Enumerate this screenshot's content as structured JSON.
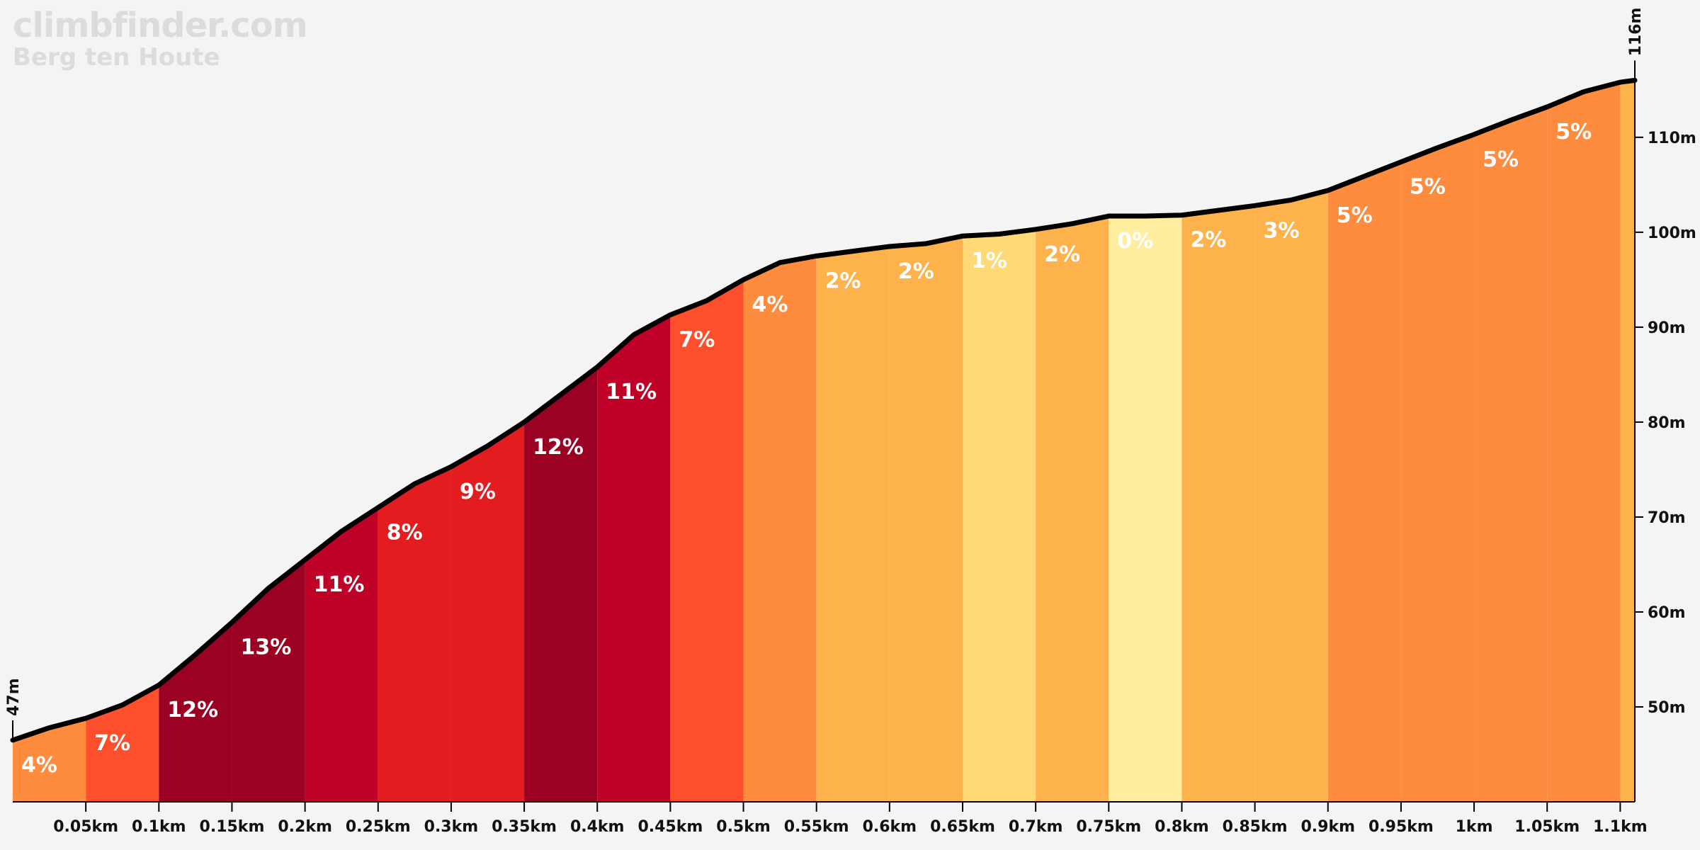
{
  "brand": {
    "site": "climbfinder.com",
    "climb": "Berg ten Houte"
  },
  "chart_data": {
    "type": "area",
    "xlabel": "",
    "ylabel": "",
    "xlim": [
      0,
      1.11
    ],
    "ylim": [
      40,
      117
    ],
    "start_label": "47m",
    "end_label": "116m",
    "x_ticks": [
      "0.05km",
      "0.1km",
      "0.15km",
      "0.2km",
      "0.25km",
      "0.3km",
      "0.35km",
      "0.4km",
      "0.45km",
      "0.5km",
      "0.55km",
      "0.6km",
      "0.65km",
      "0.7km",
      "0.75km",
      "0.8km",
      "0.85km",
      "0.9km",
      "0.95km",
      "1km",
      "1.05km",
      "1.1km"
    ],
    "x_tick_values": [
      0.05,
      0.1,
      0.15,
      0.2,
      0.25,
      0.3,
      0.35,
      0.4,
      0.45,
      0.5,
      0.55,
      0.6,
      0.65,
      0.7,
      0.75,
      0.8,
      0.85,
      0.9,
      0.95,
      1.0,
      1.05,
      1.1
    ],
    "y_ticks": [
      "50m",
      "60m",
      "70m",
      "80m",
      "90m",
      "100m",
      "110m"
    ],
    "y_tick_values": [
      50,
      60,
      70,
      80,
      90,
      100,
      110
    ],
    "profile": [
      [
        0.0,
        46.5
      ],
      [
        0.025,
        47.8
      ],
      [
        0.05,
        48.8
      ],
      [
        0.075,
        50.2
      ],
      [
        0.1,
        52.3
      ],
      [
        0.125,
        55.5
      ],
      [
        0.15,
        58.9
      ],
      [
        0.175,
        62.5
      ],
      [
        0.2,
        65.5
      ],
      [
        0.225,
        68.5
      ],
      [
        0.25,
        71.0
      ],
      [
        0.275,
        73.5
      ],
      [
        0.3,
        75.3
      ],
      [
        0.325,
        77.5
      ],
      [
        0.35,
        80.0
      ],
      [
        0.375,
        82.9
      ],
      [
        0.4,
        85.8
      ],
      [
        0.425,
        89.2
      ],
      [
        0.45,
        91.3
      ],
      [
        0.475,
        92.8
      ],
      [
        0.5,
        95.0
      ],
      [
        0.525,
        96.8
      ],
      [
        0.55,
        97.5
      ],
      [
        0.575,
        98.0
      ],
      [
        0.6,
        98.5
      ],
      [
        0.625,
        98.8
      ],
      [
        0.65,
        99.6
      ],
      [
        0.675,
        99.8
      ],
      [
        0.7,
        100.3
      ],
      [
        0.725,
        100.9
      ],
      [
        0.75,
        101.7
      ],
      [
        0.775,
        101.7
      ],
      [
        0.8,
        101.8
      ],
      [
        0.825,
        102.3
      ],
      [
        0.85,
        102.8
      ],
      [
        0.875,
        103.4
      ],
      [
        0.9,
        104.4
      ],
      [
        0.925,
        105.9
      ],
      [
        0.95,
        107.4
      ],
      [
        0.975,
        108.9
      ],
      [
        1.0,
        110.3
      ],
      [
        1.025,
        111.8
      ],
      [
        1.05,
        113.2
      ],
      [
        1.075,
        114.8
      ],
      [
        1.1,
        115.8
      ],
      [
        1.11,
        116.0
      ]
    ],
    "segments": [
      {
        "x0": 0.0,
        "x1": 0.05,
        "grade": "4%",
        "color": "#fe8c3e"
      },
      {
        "x0": 0.05,
        "x1": 0.1,
        "grade": "7%",
        "color": "#fe4f2c"
      },
      {
        "x0": 0.1,
        "x1": 0.15,
        "grade": "12%",
        "color": "#9a0122"
      },
      {
        "x0": 0.15,
        "x1": 0.2,
        "grade": "13%",
        "color": "#9a0122"
      },
      {
        "x0": 0.2,
        "x1": 0.25,
        "grade": "11%",
        "color": "#bf0027"
      },
      {
        "x0": 0.25,
        "x1": 0.3,
        "grade": "8%",
        "color": "#e31c1f"
      },
      {
        "x0": 0.3,
        "x1": 0.35,
        "grade": "9%",
        "color": "#e31c1f"
      },
      {
        "x0": 0.35,
        "x1": 0.4,
        "grade": "12%",
        "color": "#9a0122"
      },
      {
        "x0": 0.4,
        "x1": 0.45,
        "grade": "11%",
        "color": "#bf0027"
      },
      {
        "x0": 0.45,
        "x1": 0.5,
        "grade": "7%",
        "color": "#fe4f2c"
      },
      {
        "x0": 0.5,
        "x1": 0.55,
        "grade": "4%",
        "color": "#fe8c3e"
      },
      {
        "x0": 0.55,
        "x1": 0.6,
        "grade": "2%",
        "color": "#feb24c"
      },
      {
        "x0": 0.6,
        "x1": 0.65,
        "grade": "2%",
        "color": "#feb24c"
      },
      {
        "x0": 0.65,
        "x1": 0.7,
        "grade": "1%",
        "color": "#fed976"
      },
      {
        "x0": 0.7,
        "x1": 0.75,
        "grade": "2%",
        "color": "#feb24c"
      },
      {
        "x0": 0.75,
        "x1": 0.8,
        "grade": "0%",
        "color": "#ffeda0"
      },
      {
        "x0": 0.8,
        "x1": 0.85,
        "grade": "2%",
        "color": "#feb24c"
      },
      {
        "x0": 0.85,
        "x1": 0.9,
        "grade": "3%",
        "color": "#feb24c"
      },
      {
        "x0": 0.9,
        "x1": 0.95,
        "grade": "5%",
        "color": "#fe8c3e"
      },
      {
        "x0": 0.95,
        "x1": 1.0,
        "grade": "5%",
        "color": "#fe8c3e"
      },
      {
        "x0": 1.0,
        "x1": 1.05,
        "grade": "5%",
        "color": "#fe8c3e"
      },
      {
        "x0": 1.05,
        "x1": 1.1,
        "grade": "5%",
        "color": "#fe8c3e"
      },
      {
        "x0": 1.1,
        "x1": 1.11,
        "grade": "",
        "color": "#feb24c"
      }
    ]
  }
}
